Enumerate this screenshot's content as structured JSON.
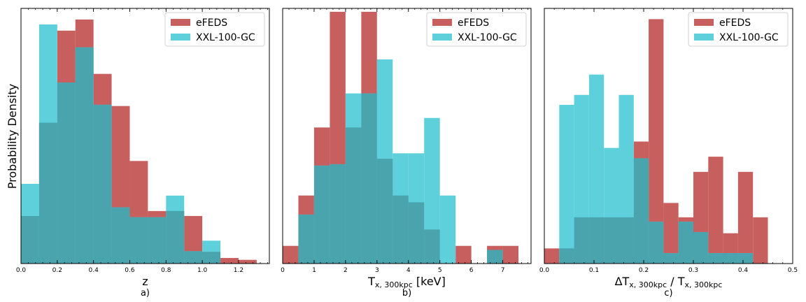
{
  "figure": {
    "ylabel": "Probability Density",
    "legend": [
      "eFEDS",
      "XXL-100-GC"
    ]
  },
  "colors": {
    "efeds": "#c85f5f",
    "xxl": "#5dd0dc",
    "overlap": "#4aa4ae"
  },
  "chart_data": [
    {
      "type": "histogram",
      "panel_label": "a)",
      "xlabel": "z",
      "xlim": [
        0,
        1.37
      ],
      "ylim": [
        0,
        4.13
      ],
      "xticks": [
        "0.0",
        "0.2",
        "0.4",
        "0.6",
        "0.8",
        "1.0",
        "1.2"
      ],
      "xtick_values": [
        0,
        0.2,
        0.4,
        0.6,
        0.8,
        1.0,
        1.2
      ],
      "legend_position": "top-right",
      "series": [
        {
          "name": "eFEDS",
          "edges": [
            0,
            0.1,
            0.2,
            0.3,
            0.4,
            0.5,
            0.6,
            0.7,
            0.8,
            0.9,
            1.0,
            1.1,
            1.2,
            1.3
          ],
          "values": [
            0.77,
            2.28,
            3.77,
            3.95,
            3.07,
            2.55,
            1.66,
            0.85,
            0.85,
            0.77,
            0.19,
            0.09,
            0.06,
            0.11
          ]
        },
        {
          "name": "XXL-100-GC",
          "edges": [
            0,
            0.1,
            0.2,
            0.3,
            0.4,
            0.5,
            0.6,
            0.7,
            0.8,
            0.9,
            1.0,
            1.1
          ],
          "values": [
            1.29,
            3.87,
            2.93,
            3.5,
            2.57,
            0.91,
            0.75,
            0.75,
            1.1,
            0.2,
            0.37,
            0.37
          ]
        }
      ]
    },
    {
      "type": "histogram",
      "panel_label": "b)",
      "xlabel": "T",
      "xlabel_sub": "x, 300kpc",
      "xlabel_unit": " [keV]",
      "xlim": [
        0,
        7.9
      ],
      "ylim": [
        0,
        0.375
      ],
      "xticks": [
        "0",
        "1",
        "2",
        "3",
        "4",
        "5",
        "6",
        "7"
      ],
      "xtick_values": [
        0,
        1,
        2,
        3,
        4,
        5,
        6,
        7
      ],
      "legend_position": "top-right",
      "series": [
        {
          "name": "eFEDS",
          "edges": [
            0,
            0.5,
            1,
            1.5,
            2,
            2.5,
            3,
            3.5,
            4,
            4.5,
            5,
            5.5,
            6,
            6.5,
            7,
            7.5
          ],
          "values": [
            0.026,
            0.1,
            0.2,
            0.37,
            0.2,
            0.37,
            0.154,
            0.1,
            0.09,
            0.05,
            0,
            0.026,
            0,
            0.026,
            0.026
          ]
        },
        {
          "name": "XXL-100-GC",
          "edges": [
            0,
            0.5,
            1,
            1.5,
            2,
            2.5,
            3,
            3.5,
            4,
            4.5,
            5,
            5.5,
            6,
            6.5,
            7
          ],
          "values": [
            0,
            0.072,
            0.144,
            0.146,
            0.25,
            0.25,
            0.3,
            0.162,
            0.162,
            0.214,
            0.1,
            0,
            0,
            0.02
          ]
        }
      ]
    },
    {
      "type": "histogram",
      "panel_label": "c)",
      "xlabel": "ΔT",
      "xlabel_sub": "x, 300kpc",
      "xlabel_mid": " / T",
      "xlabel_sub2": "x, 300kpc",
      "xlim": [
        0,
        0.5
      ],
      "ylim": [
        0,
        6.4
      ],
      "xticks": [
        "0.0",
        "0.1",
        "0.2",
        "0.3",
        "0.4",
        "0.5"
      ],
      "xtick_values": [
        0,
        0.1,
        0.2,
        0.3,
        0.4,
        0.5
      ],
      "legend_position": "top-right",
      "series": [
        {
          "name": "eFEDS",
          "edges": [
            0,
            0.03,
            0.06,
            0.09,
            0.12,
            0.15,
            0.18,
            0.21,
            0.24,
            0.27,
            0.3,
            0.33,
            0.36,
            0.39,
            0.42,
            0.45
          ],
          "values": [
            0.38,
            0.38,
            1.16,
            1.16,
            1.16,
            1.16,
            3.06,
            6.13,
            1.52,
            1.16,
            2.3,
            2.68,
            0.76,
            2.3,
            1.16
          ]
        },
        {
          "name": "XXL-100-GC",
          "edges": [
            0,
            0.03,
            0.06,
            0.09,
            0.12,
            0.15,
            0.18,
            0.21,
            0.24,
            0.27,
            0.3,
            0.33,
            0.36,
            0.39,
            0.42
          ],
          "values": [
            0,
            3.98,
            4.23,
            4.74,
            2.9,
            4.23,
            2.64,
            1.05,
            0.26,
            1.05,
            0.79,
            0.26,
            0.26,
            0.26
          ]
        }
      ]
    }
  ]
}
